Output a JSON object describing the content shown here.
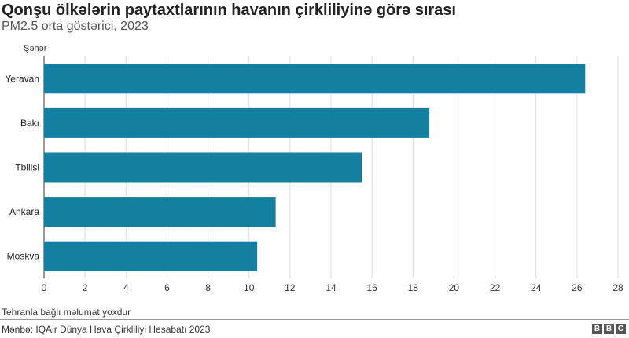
{
  "header": {
    "title": "Qonşu ölkələrin paytaxtlarının havanın çirkliliyinə görə sırası",
    "subtitle": "PM2.5 orta göstərici, 2023"
  },
  "chart_data": {
    "type": "bar",
    "orientation": "horizontal",
    "category_axis_label": "Şəhər",
    "categories": [
      "Yeravan",
      "Bakı",
      "Tbilisi",
      "Ankara",
      "Moskva"
    ],
    "values": [
      26.4,
      18.8,
      15.5,
      11.3,
      10.4
    ],
    "xlim": [
      0,
      28
    ],
    "xticks": [
      "0",
      "2",
      "4",
      "6",
      "8",
      "10",
      "12",
      "14",
      "16",
      "18",
      "20",
      "22",
      "24",
      "26",
      "28"
    ],
    "grid": true,
    "bar_color": "#1380A1"
  },
  "footer": {
    "note": "Tehranla bağlı məlumat yoxdur",
    "source": "Mənbə: IQAir Dünya Hava Çirkliliyi Hesabatı 2023",
    "logo": [
      "B",
      "B",
      "C"
    ]
  }
}
